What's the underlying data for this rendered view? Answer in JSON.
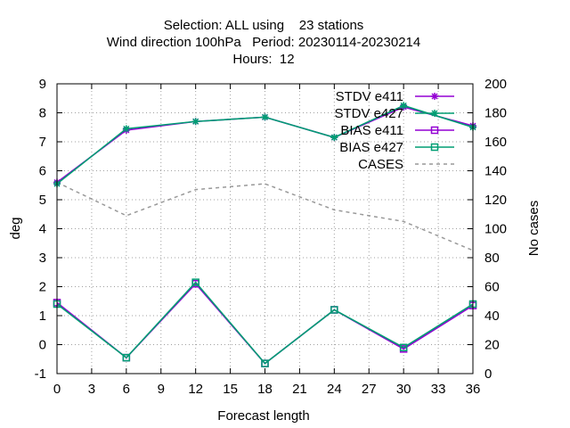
{
  "chart_data": {
    "type": "line",
    "title_lines": [
      "Selection: ALL using    23 stations",
      "Wind direction 100hPa   Period: 20230114-20230214",
      "Hours:  12"
    ],
    "xlabel": "Forecast length",
    "ylabel": "deg",
    "y2label": "No cases",
    "xlim": [
      0,
      36
    ],
    "ylim": [
      -1,
      9
    ],
    "y2lim": [
      0,
      200
    ],
    "x_ticks": [
      "0",
      "3",
      "6",
      "9",
      "12",
      "15",
      "18",
      "21",
      "24",
      "27",
      "30",
      "33",
      "36"
    ],
    "y_ticks": [
      "-1",
      "0",
      "1",
      "2",
      "3",
      "4",
      "5",
      "6",
      "7",
      "8",
      "9"
    ],
    "y2_ticks": [
      "0",
      "20",
      "40",
      "60",
      "80",
      "100",
      "120",
      "140",
      "160",
      "180",
      "200"
    ],
    "grid": true,
    "legend_position": "top-right",
    "x": [
      0,
      6,
      12,
      18,
      24,
      30,
      36
    ],
    "series": [
      {
        "name": "STDV e411",
        "axis": "y",
        "color": "#9400d3",
        "marker": "star",
        "dash": false,
        "values": [
          5.6,
          7.4,
          7.7,
          7.85,
          7.15,
          8.2,
          7.55
        ]
      },
      {
        "name": "STDV e427",
        "axis": "y",
        "color": "#009e73",
        "marker": "star",
        "dash": false,
        "values": [
          5.55,
          7.45,
          7.7,
          7.85,
          7.15,
          8.25,
          7.5
        ]
      },
      {
        "name": "BIAS e411",
        "axis": "y",
        "color": "#9400d3",
        "marker": "square",
        "dash": false,
        "values": [
          1.45,
          -0.45,
          2.1,
          -0.65,
          1.2,
          -0.15,
          1.35
        ]
      },
      {
        "name": "BIAS e427",
        "axis": "y",
        "color": "#009e73",
        "marker": "square",
        "dash": false,
        "values": [
          1.4,
          -0.45,
          2.15,
          -0.65,
          1.2,
          -0.1,
          1.4
        ]
      },
      {
        "name": "CASES",
        "axis": "y2",
        "color": "#999999",
        "marker": "none",
        "dash": true,
        "values": [
          132,
          109,
          127,
          131,
          113,
          105,
          85
        ]
      }
    ]
  }
}
